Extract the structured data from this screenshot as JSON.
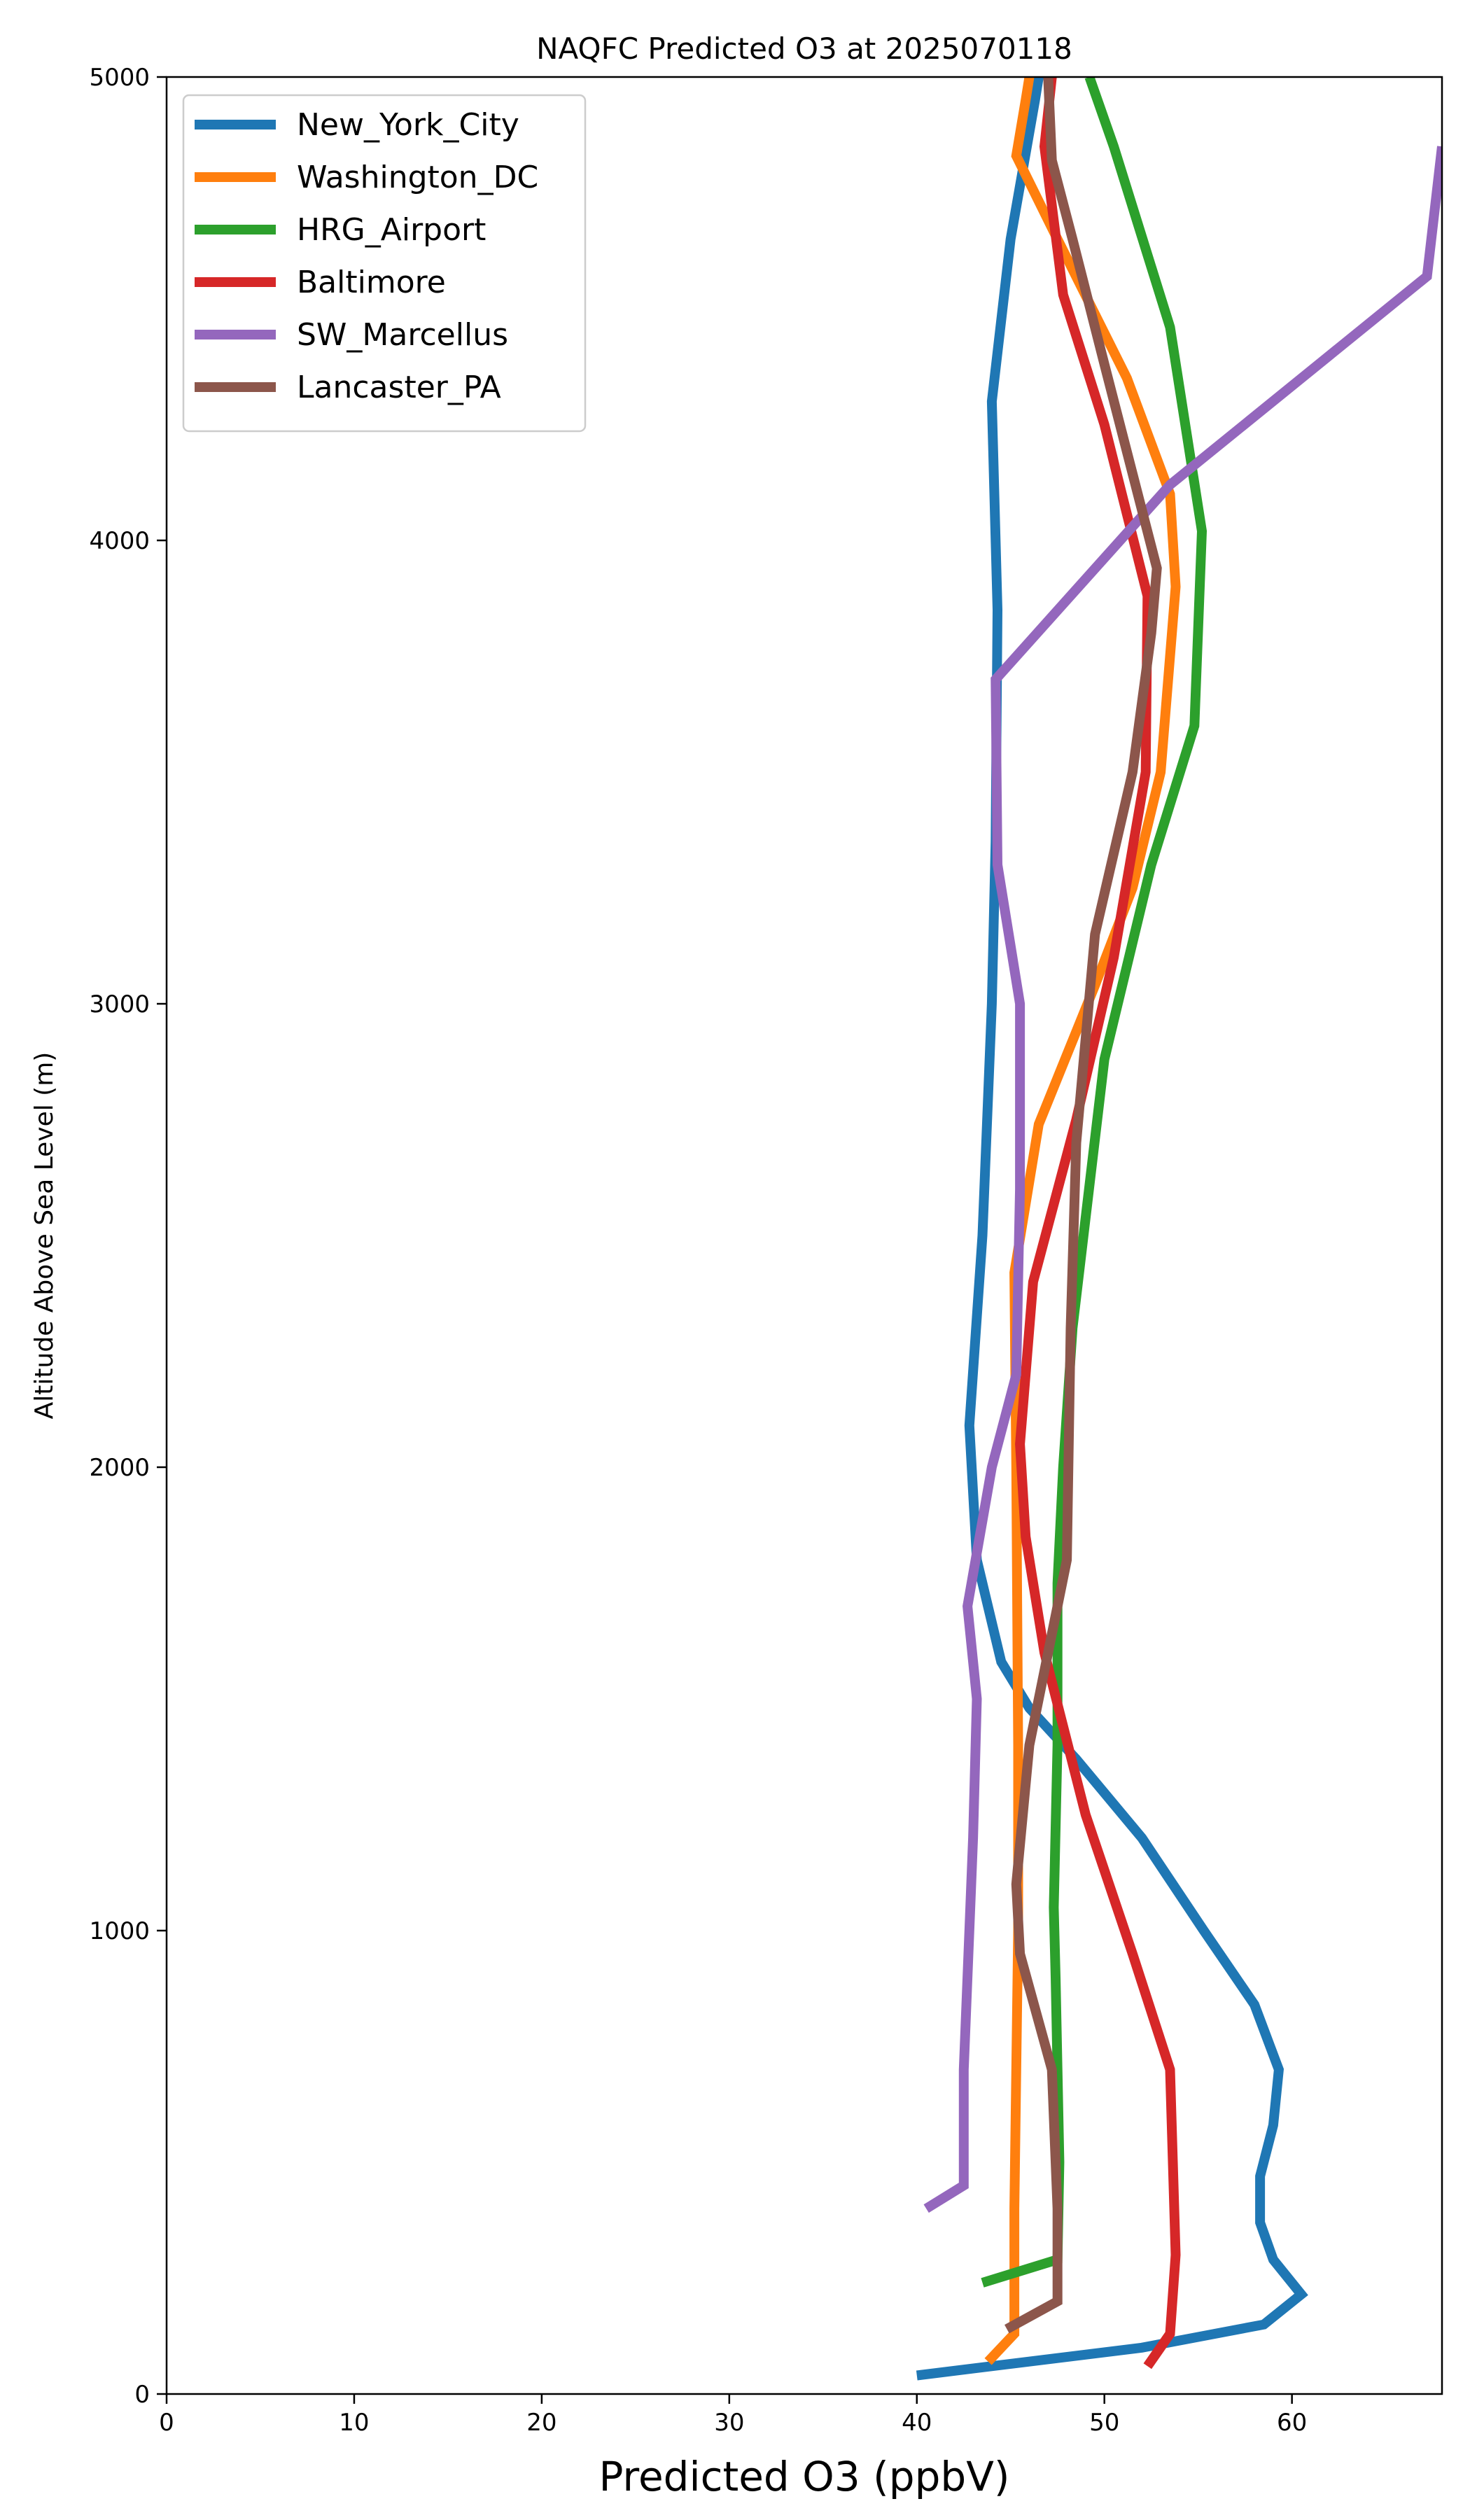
{
  "chart_data": {
    "type": "line",
    "title": "NAQFC Predicted O3 at 2025070118",
    "xlabel": "Predicted O3 (ppbV)",
    "ylabel": "Altitude Above Sea Level (m)",
    "xlim": [
      0,
      68
    ],
    "ylim": [
      0,
      5000
    ],
    "xticks": [
      "0",
      "10",
      "20",
      "30",
      "40",
      "50",
      "60"
    ],
    "yticks": [
      "0",
      "1000",
      "2000",
      "3000",
      "4000",
      "5000"
    ],
    "grid": false,
    "legend_position": "top-left",
    "series": [
      {
        "name": "New_York_City",
        "color": "#1f77b4",
        "points": [
          [
            40,
            40
          ],
          [
            52,
            100
          ],
          [
            58.5,
            150
          ],
          [
            60.5,
            215
          ],
          [
            59,
            290
          ],
          [
            58.3,
            370
          ],
          [
            58.3,
            470
          ],
          [
            59,
            580
          ],
          [
            59.3,
            700
          ],
          [
            58,
            840
          ],
          [
            55.3,
            1000
          ],
          [
            52,
            1200
          ],
          [
            48.5,
            1370
          ],
          [
            46,
            1480
          ],
          [
            44.5,
            1580
          ],
          [
            43.2,
            1800
          ],
          [
            42.8,
            2090
          ],
          [
            43.5,
            2500
          ],
          [
            44,
            3000
          ],
          [
            44.2,
            3350
          ],
          [
            44.3,
            3850
          ],
          [
            44,
            4300
          ],
          [
            45,
            4650
          ],
          [
            46.3,
            4950
          ],
          [
            46.5,
            5000
          ]
        ]
      },
      {
        "name": "Washington_DC",
        "color": "#ff7f0e",
        "points": [
          [
            43.8,
            70
          ],
          [
            45.2,
            130
          ],
          [
            45.2,
            400
          ],
          [
            45.3,
            700
          ],
          [
            45.4,
            1000
          ],
          [
            45.4,
            1400
          ],
          [
            45.3,
            2000
          ],
          [
            45.2,
            2420
          ],
          [
            46.5,
            2740
          ],
          [
            49.5,
            3040
          ],
          [
            51.5,
            3250
          ],
          [
            53,
            3500
          ],
          [
            53.8,
            3900
          ],
          [
            53.5,
            4100
          ],
          [
            51.2,
            4350
          ],
          [
            47.5,
            4650
          ],
          [
            45.3,
            4830
          ],
          [
            45.8,
            4950
          ],
          [
            46,
            5000
          ]
        ]
      },
      {
        "name": "HRG_Airport",
        "color": "#2ca02c",
        "points": [
          [
            43.5,
            240
          ],
          [
            47.5,
            290
          ],
          [
            47.6,
            500
          ],
          [
            47.5,
            700
          ],
          [
            47.4,
            900
          ],
          [
            47.3,
            1050
          ],
          [
            47.5,
            1400
          ],
          [
            47.5,
            1750
          ],
          [
            47.8,
            2000
          ],
          [
            48.3,
            2300
          ],
          [
            50,
            2880
          ],
          [
            52.5,
            3300
          ],
          [
            54.8,
            3600
          ],
          [
            55.2,
            4020
          ],
          [
            53.5,
            4460
          ],
          [
            50.5,
            4850
          ],
          [
            49.2,
            5000
          ]
        ]
      },
      {
        "name": "Baltimore",
        "color": "#d62728",
        "points": [
          [
            52.3,
            60
          ],
          [
            53.5,
            130
          ],
          [
            53.8,
            300
          ],
          [
            53.5,
            700
          ],
          [
            51.5,
            950
          ],
          [
            49,
            1250
          ],
          [
            46.8,
            1600
          ],
          [
            45.8,
            1850
          ],
          [
            45.5,
            2050
          ],
          [
            46.2,
            2400
          ],
          [
            48.5,
            2750
          ],
          [
            50.5,
            3100
          ],
          [
            52.2,
            3500
          ],
          [
            52.3,
            3880
          ],
          [
            50,
            4250
          ],
          [
            47.8,
            4530
          ],
          [
            46.8,
            4850
          ],
          [
            47.2,
            5000
          ]
        ]
      },
      {
        "name": "SW_Marcellus",
        "color": "#9467bd",
        "points": [
          [
            40.5,
            400
          ],
          [
            42.5,
            450
          ],
          [
            42.5,
            700
          ],
          [
            42.8,
            1000
          ],
          [
            43,
            1200
          ],
          [
            43.2,
            1500
          ],
          [
            42.7,
            1700
          ],
          [
            44,
            2000
          ],
          [
            45.3,
            2200
          ],
          [
            45.5,
            2600
          ],
          [
            45.5,
            3000
          ],
          [
            44.3,
            3300
          ],
          [
            44.2,
            3700
          ],
          [
            53.5,
            4120
          ],
          [
            67.2,
            4570
          ],
          [
            68,
            4850
          ]
        ]
      },
      {
        "name": "Lancaster_PA",
        "color": "#8c564b",
        "points": [
          [
            44.8,
            140
          ],
          [
            47.5,
            200
          ],
          [
            47.5,
            400
          ],
          [
            47.2,
            700
          ],
          [
            45.5,
            950
          ],
          [
            45.3,
            1100
          ],
          [
            46,
            1400
          ],
          [
            47,
            1600
          ],
          [
            48,
            1800
          ],
          [
            48.2,
            2300
          ],
          [
            48.5,
            2700
          ],
          [
            49.5,
            3150
          ],
          [
            51.5,
            3500
          ],
          [
            52.5,
            3800
          ],
          [
            52.8,
            3940
          ],
          [
            50,
            4380
          ],
          [
            48.3,
            4650
          ],
          [
            47.2,
            4820
          ],
          [
            47,
            5000
          ]
        ]
      }
    ]
  }
}
